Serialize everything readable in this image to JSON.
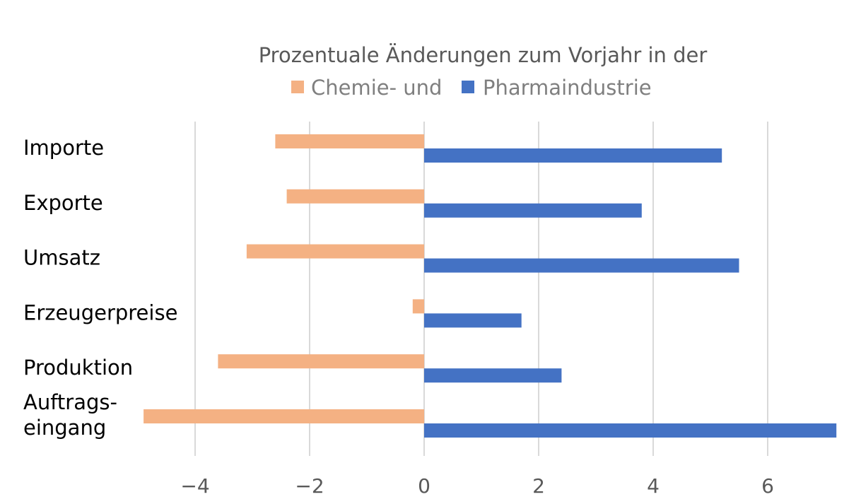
{
  "chart_data": {
    "type": "bar",
    "orientation": "horizontal",
    "title": "Prozentuale Änderungen zum Vorjahr in der",
    "categories": [
      "Importe",
      "Exporte",
      "Umsatz",
      "Erzeugerpreise",
      "Produktion",
      "Auftrags-\neingang"
    ],
    "series": [
      {
        "name": "Chemie-  und",
        "color": "#F4B183",
        "values": [
          -2.6,
          -2.4,
          -3.1,
          -0.2,
          -3.6,
          -4.9
        ]
      },
      {
        "name": "Pharmaindustrie",
        "color": "#4472C4",
        "values": [
          5.2,
          3.8,
          5.5,
          1.7,
          2.4,
          7.2
        ]
      }
    ],
    "xlim": [
      -4.5,
      7.2
    ],
    "xticks": [
      -4,
      -2,
      0,
      2,
      4,
      6
    ],
    "xtick_labels": [
      "−4",
      "−2",
      "0",
      "2",
      "4",
      "6"
    ],
    "grid": "vertical",
    "legend_position": "top"
  }
}
